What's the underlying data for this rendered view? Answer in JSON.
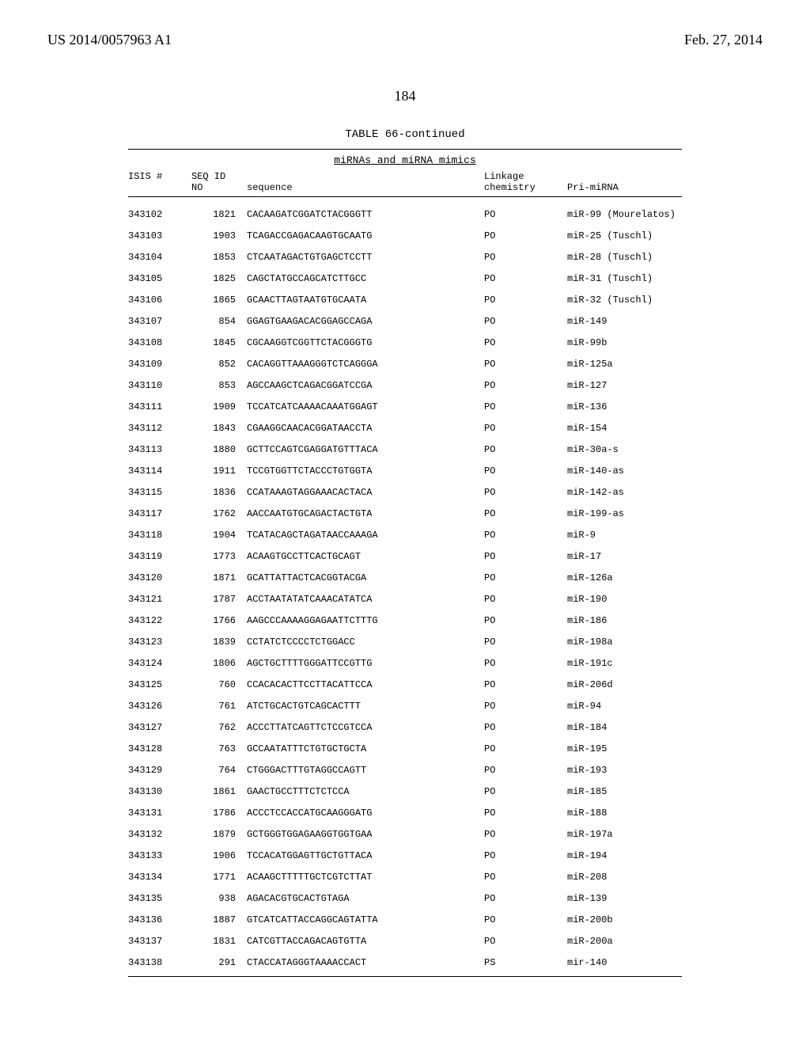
{
  "header": {
    "left": "US 2014/0057963 A1",
    "right": "Feb. 27, 2014"
  },
  "page_number": "184",
  "table": {
    "title": "TABLE 66-continued",
    "subtitle": "miRNAs and miRNA mimics",
    "columns": {
      "isis_top": "",
      "isis_bot": "ISIS #",
      "seq_top": "SEQ ID",
      "seq_bot": "NO",
      "sequence": "sequence",
      "linkage_top": "Linkage",
      "linkage_bot": "chemistry",
      "pri": "Pri-miRNA"
    },
    "rows": [
      {
        "isis": "343102",
        "seq": "1821",
        "sequence": "CACAAGATCGGATCTACGGGTT",
        "link": "PO",
        "pri": "miR-99 (Mourelatos)"
      },
      {
        "isis": "343103",
        "seq": "1903",
        "sequence": "TCAGACCGAGACAAGTGCAATG",
        "link": "PO",
        "pri": "miR-25 (Tuschl)"
      },
      {
        "isis": "343104",
        "seq": "1853",
        "sequence": "CTCAATAGACTGTGAGCTCCTT",
        "link": "PO",
        "pri": "miR-28 (Tuschl)"
      },
      {
        "isis": "343105",
        "seq": "1825",
        "sequence": "CAGCTATGCCAGCATCTTGCC",
        "link": "PO",
        "pri": "miR-31 (Tuschl)"
      },
      {
        "isis": "343106",
        "seq": "1865",
        "sequence": "GCAACTTAGTAATGTGCAATA",
        "link": "PO",
        "pri": "miR-32 (Tuschl)"
      },
      {
        "isis": "343107",
        "seq": "854",
        "sequence": "GGAGTGAAGACACGGAGCCAGA",
        "link": "PO",
        "pri": "miR-149"
      },
      {
        "isis": "343108",
        "seq": "1845",
        "sequence": "CGCAAGGTCGGTTCTACGGGTG",
        "link": "PO",
        "pri": "miR-99b"
      },
      {
        "isis": "343109",
        "seq": "852",
        "sequence": "CACAGGTTAAAGGGTCTCAGGGA",
        "link": "PO",
        "pri": "miR-125a"
      },
      {
        "isis": "343110",
        "seq": "853",
        "sequence": "AGCCAAGCTCAGACGGATCCGA",
        "link": "PO",
        "pri": "miR-127"
      },
      {
        "isis": "343111",
        "seq": "1909",
        "sequence": "TCCATCATCAAAACAAATGGAGT",
        "link": "PO",
        "pri": "miR-136"
      },
      {
        "isis": "343112",
        "seq": "1843",
        "sequence": "CGAAGGCAACACGGATAACCTA",
        "link": "PO",
        "pri": "miR-154"
      },
      {
        "isis": "343113",
        "seq": "1880",
        "sequence": "GCTTCCAGTCGAGGATGTTTACA",
        "link": "PO",
        "pri": "miR-30a-s"
      },
      {
        "isis": "343114",
        "seq": "1911",
        "sequence": "TCCGTGGTTCTACCCTGTGGTA",
        "link": "PO",
        "pri": "miR-140-as"
      },
      {
        "isis": "343115",
        "seq": "1836",
        "sequence": "CCATAAAGTAGGAAACACTACA",
        "link": "PO",
        "pri": "miR-142-as"
      },
      {
        "isis": "343117",
        "seq": "1762",
        "sequence": "AACCAATGTGCAGACTACTGTA",
        "link": "PO",
        "pri": "miR-199-as"
      },
      {
        "isis": "343118",
        "seq": "1904",
        "sequence": "TCATACAGCTAGATAACCAAAGA",
        "link": "PO",
        "pri": "miR-9"
      },
      {
        "isis": "343119",
        "seq": "1773",
        "sequence": "ACAAGTGCCTTCACTGCAGT",
        "link": "PO",
        "pri": "miR-17"
      },
      {
        "isis": "343120",
        "seq": "1871",
        "sequence": "GCATTATTACTCACGGTACGA",
        "link": "PO",
        "pri": "miR-126a"
      },
      {
        "isis": "343121",
        "seq": "1787",
        "sequence": "ACCTAATATATCAAACATATCA",
        "link": "PO",
        "pri": "miR-190"
      },
      {
        "isis": "343122",
        "seq": "1766",
        "sequence": "AAGCCCAAAAGGAGAATTCTTTG",
        "link": "PO",
        "pri": "miR-186"
      },
      {
        "isis": "343123",
        "seq": "1839",
        "sequence": "CCTATCTCCCCTCTGGACC",
        "link": "PO",
        "pri": "miR-198a"
      },
      {
        "isis": "343124",
        "seq": "1806",
        "sequence": "AGCTGCTTTTGGGATTCCGTTG",
        "link": "PO",
        "pri": "miR-191c"
      },
      {
        "isis": "343125",
        "seq": "760",
        "sequence": "CCACACACTTCCTTACATTCCA",
        "link": "PO",
        "pri": "miR-206d"
      },
      {
        "isis": "343126",
        "seq": "761",
        "sequence": "ATCTGCACTGTCAGCACTTT",
        "link": "PO",
        "pri": "miR-94"
      },
      {
        "isis": "343127",
        "seq": "762",
        "sequence": "ACCCTTATCAGTTCTCCGTCCA",
        "link": "PO",
        "pri": "miR-184"
      },
      {
        "isis": "343128",
        "seq": "763",
        "sequence": "GCCAATATTTCTGTGCTGCTA",
        "link": "PO",
        "pri": "miR-195"
      },
      {
        "isis": "343129",
        "seq": "764",
        "sequence": "CTGGGACTTTGTAGGCCAGTT",
        "link": "PO",
        "pri": "miR-193"
      },
      {
        "isis": "343130",
        "seq": "1861",
        "sequence": "GAACTGCCTTTCTCTCCA",
        "link": "PO",
        "pri": "miR-185"
      },
      {
        "isis": "343131",
        "seq": "1786",
        "sequence": "ACCCTCCACCATGCAAGGGATG",
        "link": "PO",
        "pri": "miR-188"
      },
      {
        "isis": "343132",
        "seq": "1879",
        "sequence": "GCTGGGTGGAGAAGGTGGTGAA",
        "link": "PO",
        "pri": "miR-197a"
      },
      {
        "isis": "343133",
        "seq": "1906",
        "sequence": "TCCACATGGAGTTGCTGTTACA",
        "link": "PO",
        "pri": "miR-194"
      },
      {
        "isis": "343134",
        "seq": "1771",
        "sequence": "ACAAGCTTTTTGCTCGTCTTAT",
        "link": "PO",
        "pri": "miR-208"
      },
      {
        "isis": "343135",
        "seq": "938",
        "sequence": "AGACACGTGCACTGTAGA",
        "link": "PO",
        "pri": "miR-139"
      },
      {
        "isis": "343136",
        "seq": "1887",
        "sequence": "GTCATCATTACCAGGCAGTATTA",
        "link": "PO",
        "pri": "miR-200b"
      },
      {
        "isis": "343137",
        "seq": "1831",
        "sequence": "CATCGTTACCAGACAGTGTTA",
        "link": "PO",
        "pri": "miR-200a"
      },
      {
        "isis": "343138",
        "seq": "291",
        "sequence": "CTACCATAGGGTAAAACCACT",
        "link": "PS",
        "pri": "mir-140"
      }
    ]
  },
  "style": {
    "page_bg": "#ffffff",
    "text_color": "#000000",
    "mono_font": "Courier New",
    "serif_font": "Times New Roman",
    "header_fontsize": 18,
    "pagenum_fontsize": 18,
    "table_title_fontsize": 14,
    "table_body_fontsize": 12,
    "col_widths": {
      "isis": 80,
      "seq": 70,
      "sequence": 300,
      "link": 105
    }
  }
}
